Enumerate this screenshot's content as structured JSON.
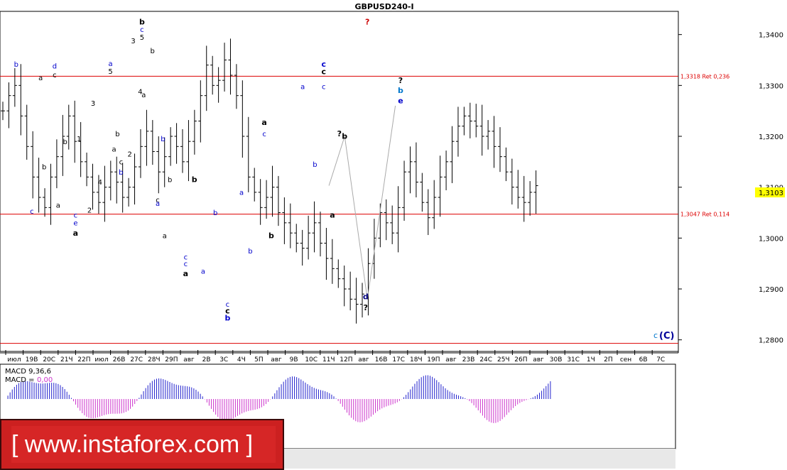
{
  "chart_data": {
    "type": "candlestick",
    "title": "GBPUSD240-I",
    "ylim": [
      1.278,
      1.344
    ],
    "yticks": [
      "1,2800",
      "1,2900",
      "1,3000",
      "1,3100",
      "1,3200",
      "1,3300",
      "1,3400"
    ],
    "current_price": {
      "value": 1.3103,
      "label": "1,3103"
    },
    "xticks": [
      "июл",
      "19В",
      "20С",
      "21Ч",
      "22П",
      "июл",
      "26В",
      "27С",
      "28Ч",
      "29П",
      "авг",
      "2В",
      "3С",
      "4Ч",
      "5П",
      "авг",
      "9В",
      "10С",
      "11Ч",
      "12П",
      "авг",
      "16В",
      "17С",
      "18Ч",
      "19П",
      "авг",
      "23В",
      "24С",
      "25Ч",
      "26П",
      "авг",
      "30В",
      "31С",
      "1Ч",
      "2П",
      "сен",
      "6В",
      "7С"
    ],
    "levels": [
      {
        "price": 1.3318,
        "label": "1,3318 Ret 0,236"
      },
      {
        "price": 1.3047,
        "label": "1,3047 Ret 0,114"
      },
      {
        "price": 1.2793,
        "label": ""
      }
    ],
    "close_path": [
      1.325,
      1.328,
      1.33,
      1.324,
      1.318,
      1.312,
      1.308,
      1.306,
      1.312,
      1.316,
      1.32,
      1.324,
      1.319,
      1.315,
      1.312,
      1.309,
      1.307,
      1.31,
      1.313,
      1.311,
      1.308,
      1.31,
      1.314,
      1.318,
      1.321,
      1.317,
      1.313,
      1.316,
      1.32,
      1.318,
      1.315,
      1.319,
      1.323,
      1.328,
      1.334,
      1.33,
      1.331,
      1.335,
      1.332,
      1.328,
      1.32,
      1.312,
      1.309,
      1.306,
      1.308,
      1.31,
      1.305,
      1.303,
      1.301,
      1.299,
      1.298,
      1.301,
      1.303,
      1.299,
      1.296,
      1.294,
      1.292,
      1.29,
      1.288,
      1.287,
      1.289,
      1.295,
      1.3,
      1.305,
      1.303,
      1.301,
      1.306,
      1.313,
      1.315,
      1.311,
      1.307,
      1.304,
      1.308,
      1.312,
      1.315,
      1.319,
      1.322,
      1.324,
      1.323,
      1.322,
      1.32,
      1.321,
      1.318,
      1.316,
      1.313,
      1.31,
      1.308,
      1.307,
      1.309,
      1.3103
    ],
    "forecast_path": [
      {
        "x": "18.5",
        "y": 1.3103
      },
      {
        "x": "19.4",
        "y": 1.32
      },
      {
        "x": "20.7",
        "y": 1.288
      },
      {
        "x": "22.3",
        "y": 1.326
      }
    ],
    "wave_labels": [
      {
        "text": "b",
        "bar": 7.8,
        "price": 1.342,
        "color": "#000000",
        "bold": true
      },
      {
        "text": "c",
        "bar": 7.8,
        "price": 1.3405,
        "color": "#0000cc"
      },
      {
        "text": "5",
        "bar": 7.8,
        "price": 1.339,
        "color": "#000000"
      },
      {
        "text": "3",
        "bar": 7.3,
        "price": 1.3383,
        "color": "#000000"
      },
      {
        "text": "b",
        "bar": 8.4,
        "price": 1.3363,
        "color": "#000000"
      },
      {
        "text": "4",
        "bar": 7.7,
        "price": 1.3283,
        "color": "#000000"
      },
      {
        "text": "a",
        "bar": 7.9,
        "price": 1.3277,
        "color": "#000000"
      },
      {
        "text": "a",
        "bar": 6.0,
        "price": 1.3338,
        "color": "#0000cc"
      },
      {
        "text": "5",
        "bar": 6.0,
        "price": 1.3323,
        "color": "#000000"
      },
      {
        "text": "b",
        "bar": 0.6,
        "price": 1.3337,
        "color": "#0000cc"
      },
      {
        "text": "d",
        "bar": 2.8,
        "price": 1.3333,
        "color": "#0000cc"
      },
      {
        "text": "c",
        "bar": 2.8,
        "price": 1.3316,
        "color": "#000000"
      },
      {
        "text": "a",
        "bar": 2.0,
        "price": 1.331,
        "color": "#000000"
      },
      {
        "text": "3",
        "bar": 5.0,
        "price": 1.326,
        "color": "#000000"
      },
      {
        "text": "1",
        "bar": 4.2,
        "price": 1.319,
        "color": "#000000"
      },
      {
        "text": "b",
        "bar": 3.4,
        "price": 1.3185,
        "color": "#000000"
      },
      {
        "text": "b",
        "bar": 6.4,
        "price": 1.32,
        "color": "#000000"
      },
      {
        "text": "a",
        "bar": 6.2,
        "price": 1.317,
        "color": "#000000"
      },
      {
        "text": "b",
        "bar": 2.2,
        "price": 1.3135,
        "color": "#000000"
      },
      {
        "text": "c",
        "bar": 6.6,
        "price": 1.3145,
        "color": "#000000"
      },
      {
        "text": "b",
        "bar": 6.6,
        "price": 1.3125,
        "color": "#0000cc"
      },
      {
        "text": "2",
        "bar": 7.1,
        "price": 1.316,
        "color": "#000000"
      },
      {
        "text": "4",
        "bar": 5.4,
        "price": 1.3105,
        "color": "#000000"
      },
      {
        "text": "a",
        "bar": 3.0,
        "price": 1.306,
        "color": "#000000"
      },
      {
        "text": "2",
        "bar": 4.8,
        "price": 1.305,
        "color": "#000000"
      },
      {
        "text": "c",
        "bar": 1.5,
        "price": 1.3048,
        "color": "#0000cc"
      },
      {
        "text": "c",
        "bar": 4.0,
        "price": 1.304,
        "color": "#0000cc"
      },
      {
        "text": "e",
        "bar": 4.0,
        "price": 1.3025,
        "color": "#0000cc"
      },
      {
        "text": "a",
        "bar": 4.0,
        "price": 1.3005,
        "color": "#000000",
        "bold": true
      },
      {
        "text": "b",
        "bar": 9.0,
        "price": 1.319,
        "color": "#0000cc"
      },
      {
        "text": "b",
        "bar": 9.4,
        "price": 1.311,
        "color": "#000000"
      },
      {
        "text": "c",
        "bar": 8.7,
        "price": 1.307,
        "color": "#000000"
      },
      {
        "text": "a",
        "bar": 8.7,
        "price": 1.3063,
        "color": "#0000cc"
      },
      {
        "text": "a",
        "bar": 9.1,
        "price": 1.3,
        "color": "#000000"
      },
      {
        "text": "b",
        "bar": 10.8,
        "price": 1.311,
        "color": "#000000",
        "bold": true
      },
      {
        "text": "c",
        "bar": 10.3,
        "price": 1.2958,
        "color": "#0000cc"
      },
      {
        "text": "c",
        "bar": 10.3,
        "price": 1.2945,
        "color": "#0000cc"
      },
      {
        "text": "a",
        "bar": 10.3,
        "price": 1.2925,
        "color": "#000000",
        "bold": true
      },
      {
        "text": "a",
        "bar": 11.3,
        "price": 1.293,
        "color": "#0000cc"
      },
      {
        "text": "b",
        "bar": 12.0,
        "price": 1.3045,
        "color": "#0000cc"
      },
      {
        "text": "c",
        "bar": 12.7,
        "price": 1.2865,
        "color": "#0000cc"
      },
      {
        "text": "c",
        "bar": 12.7,
        "price": 1.2852,
        "color": "#000000",
        "bold": true
      },
      {
        "text": "b",
        "bar": 12.7,
        "price": 1.2838,
        "color": "#0000cc",
        "bold": true
      },
      {
        "text": "a",
        "bar": 13.5,
        "price": 1.3085,
        "color": "#0000cc"
      },
      {
        "text": "b",
        "bar": 14.0,
        "price": 1.297,
        "color": "#0000cc"
      },
      {
        "text": "a",
        "bar": 14.8,
        "price": 1.3222,
        "color": "#000000",
        "bold": true
      },
      {
        "text": "c",
        "bar": 14.8,
        "price": 1.32,
        "color": "#0000cc"
      },
      {
        "text": "b",
        "bar": 15.2,
        "price": 1.3,
        "color": "#000000",
        "bold": true
      },
      {
        "text": "a",
        "bar": 17.0,
        "price": 1.3293,
        "color": "#0000cc"
      },
      {
        "text": "b",
        "bar": 17.7,
        "price": 1.314,
        "color": "#0000cc"
      },
      {
        "text": "c",
        "bar": 18.2,
        "price": 1.3337,
        "color": "#0000cc",
        "bold": true
      },
      {
        "text": "c",
        "bar": 18.2,
        "price": 1.3322,
        "color": "#000000",
        "bold": true
      },
      {
        "text": "c",
        "bar": 18.2,
        "price": 1.3293,
        "color": "#0000cc"
      },
      {
        "text": "a",
        "bar": 18.7,
        "price": 1.304,
        "color": "#000000",
        "bold": true
      },
      {
        "text": "?",
        "bar": 19.1,
        "price": 1.32,
        "color": "#000000",
        "bold": true
      },
      {
        "text": "b",
        "bar": 19.4,
        "price": 1.3195,
        "color": "#000000",
        "bold": true
      },
      {
        "text": "?",
        "bar": 20.7,
        "price": 1.342,
        "color": "#cc0000",
        "bold": true
      },
      {
        "text": "d",
        "bar": 20.6,
        "price": 1.288,
        "color": "#000080",
        "bold": true
      },
      {
        "text": "?",
        "bar": 20.6,
        "price": 1.2858,
        "color": "#000000",
        "bold": true
      },
      {
        "text": "?",
        "bar": 22.6,
        "price": 1.3305,
        "color": "#000000",
        "bold": true
      },
      {
        "text": "b",
        "bar": 22.6,
        "price": 1.3285,
        "color": "#0077cc",
        "bold": true
      },
      {
        "text": "e",
        "bar": 22.6,
        "price": 1.3265,
        "color": "#0000cc",
        "bold": true
      }
    ],
    "wave_c_label": {
      "small": "c",
      "big": "(C)"
    },
    "macd": {
      "label": "MACD 9,36,6",
      "value_label": "MACD =",
      "value": "0,00",
      "pos_color": "#2222cc",
      "neg_color": "#cc33cc"
    },
    "colors": {
      "level_line": "#dd0000",
      "forecast_line": "#aaaaaa",
      "bars": "#000000",
      "price_badge": "#ffff00"
    }
  },
  "watermark": {
    "text": "[ www.instaforex.com ]"
  }
}
